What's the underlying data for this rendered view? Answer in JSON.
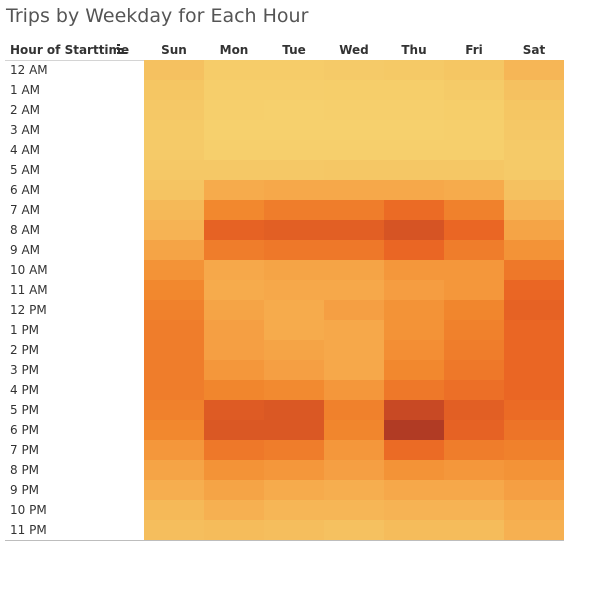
{
  "chart_data": {
    "type": "heatmap",
    "title": "Trips by Weekday for Each Hour",
    "row_header": "Hour of Starttime",
    "columns": [
      "Sun",
      "Mon",
      "Tue",
      "Wed",
      "Thu",
      "Fri",
      "Sat"
    ],
    "rows": [
      "12 AM",
      "1 AM",
      "2 AM",
      "3 AM",
      "4 AM",
      "5 AM",
      "6 AM",
      "7 AM",
      "8 AM",
      "9 AM",
      "10 AM",
      "11 AM",
      "12 PM",
      "1 PM",
      "2 PM",
      "3 PM",
      "4 PM",
      "5 PM",
      "6 PM",
      "7 PM",
      "8 PM",
      "9 PM",
      "10 PM",
      "11 PM"
    ],
    "value_scale": [
      0,
      100
    ],
    "values": [
      [
        22,
        10,
        10,
        12,
        14,
        18,
        30
      ],
      [
        18,
        7,
        7,
        8,
        8,
        11,
        22
      ],
      [
        15,
        6,
        5,
        6,
        6,
        8,
        18
      ],
      [
        13,
        5,
        5,
        5,
        5,
        6,
        15
      ],
      [
        12,
        6,
        6,
        6,
        6,
        6,
        12
      ],
      [
        15,
        15,
        15,
        16,
        16,
        16,
        12
      ],
      [
        20,
        38,
        40,
        40,
        40,
        38,
        22
      ],
      [
        28,
        55,
        60,
        60,
        68,
        58,
        32
      ],
      [
        32,
        72,
        74,
        74,
        80,
        70,
        42
      ],
      [
        42,
        60,
        62,
        62,
        70,
        60,
        50
      ],
      [
        50,
        40,
        42,
        42,
        48,
        48,
        62
      ],
      [
        55,
        38,
        40,
        40,
        45,
        48,
        70
      ],
      [
        58,
        42,
        38,
        44,
        50,
        56,
        72
      ],
      [
        60,
        44,
        38,
        40,
        50,
        58,
        70
      ],
      [
        60,
        44,
        42,
        40,
        52,
        60,
        70
      ],
      [
        60,
        48,
        44,
        40,
        55,
        62,
        70
      ],
      [
        60,
        56,
        54,
        48,
        62,
        66,
        70
      ],
      [
        58,
        76,
        78,
        58,
        88,
        74,
        68
      ],
      [
        55,
        78,
        78,
        56,
        96,
        72,
        64
      ],
      [
        48,
        62,
        60,
        48,
        68,
        60,
        58
      ],
      [
        42,
        50,
        48,
        44,
        50,
        48,
        50
      ],
      [
        36,
        42,
        38,
        36,
        40,
        40,
        44
      ],
      [
        28,
        34,
        30,
        30,
        32,
        32,
        38
      ],
      [
        24,
        26,
        24,
        22,
        26,
        26,
        34
      ]
    ]
  }
}
